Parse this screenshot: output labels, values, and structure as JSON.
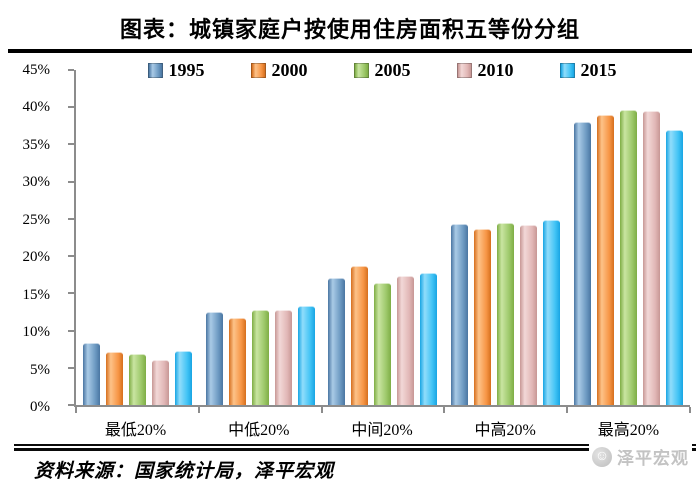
{
  "title": "图表：城镇家庭户按使用住房面积五等份分组",
  "source": "资料来源：国家统计局，泽平宏观",
  "watermark": {
    "label": "泽平宏观",
    "icon": "smiley-face-icon"
  },
  "chart_data": {
    "type": "bar",
    "title": "图表：城镇家庭户按使用住房面积五等份分组",
    "categories": [
      "最低20%",
      "中低20%",
      "中间20%",
      "中高20%",
      "最高20%"
    ],
    "series": [
      {
        "name": "1995",
        "color": "#6d9ac2",
        "color_dark": "#4a76a2",
        "color_light": "#a9cae6",
        "values": [
          8.3,
          12.5,
          17.0,
          24.3,
          38.0
        ]
      },
      {
        "name": "2000",
        "color": "#f79646",
        "color_dark": "#d66f1e",
        "color_light": "#fdc288",
        "values": [
          7.1,
          11.7,
          18.7,
          23.6,
          39.0
        ]
      },
      {
        "name": "2005",
        "color": "#9dc86a",
        "color_dark": "#7ead45",
        "color_light": "#c9e5a1",
        "values": [
          6.8,
          12.8,
          16.4,
          24.5,
          39.6
        ]
      },
      {
        "name": "2010",
        "color": "#e1b7b6",
        "color_dark": "#c79795",
        "color_light": "#f2d8d7",
        "values": [
          6.1,
          12.8,
          17.3,
          24.2,
          39.5
        ]
      },
      {
        "name": "2015",
        "color": "#41c3f5",
        "color_dark": "#18a5e3",
        "color_light": "#90ddfb",
        "values": [
          7.2,
          13.3,
          17.8,
          24.9,
          36.9
        ]
      }
    ],
    "xlabel": "",
    "ylabel": "",
    "ylim": [
      0,
      45
    ],
    "ytick_step": 5,
    "ytick_labels": [
      "0%",
      "5%",
      "10%",
      "15%",
      "20%",
      "25%",
      "30%",
      "35%",
      "40%",
      "45%"
    ],
    "grid": false,
    "legend_position": "top",
    "axis_color": "#8c8c8c"
  }
}
